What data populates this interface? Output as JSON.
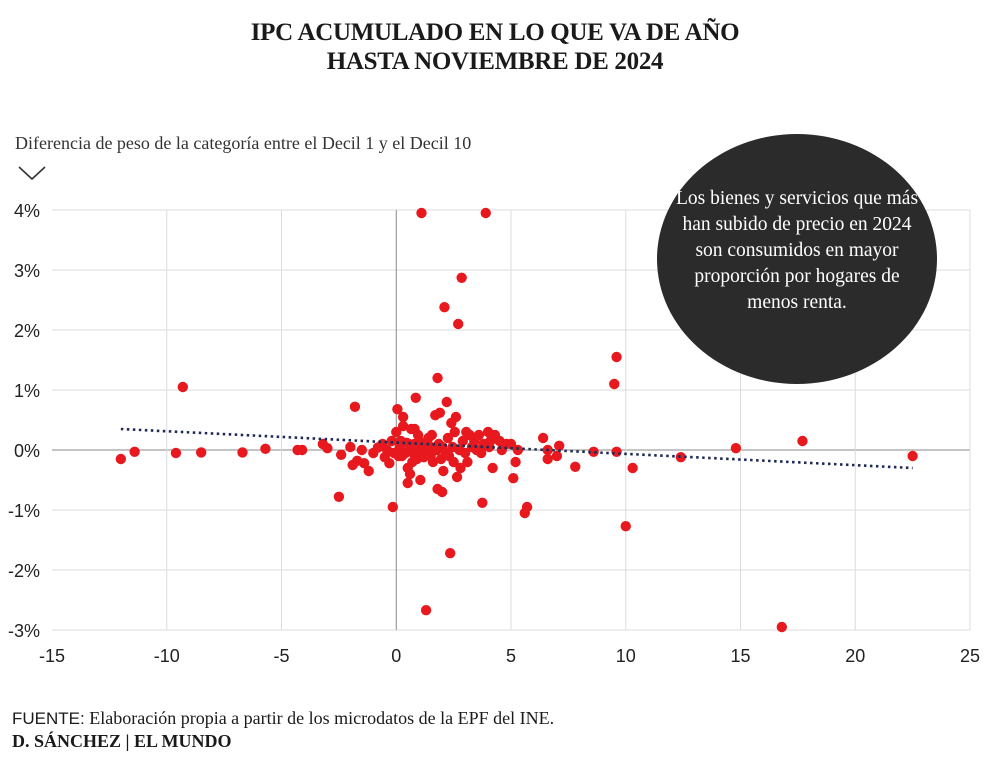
{
  "header": {
    "title_line1": "IPC ACUMULADO EN LO QUE VA DE AÑO",
    "title_line2": "HASTA NOVIEMBRE DE 2024",
    "subtitle": "Diferencia de peso de la categoría entre el Decil 1 y el Decil 10",
    "chevron_icon": "chevron-down-icon"
  },
  "annotation": {
    "text": "Los bienes y servicios que más han subido de precio en 2024 son consumidos en mayor proporción por hogares de menos renta.",
    "background": "#2b2b2b"
  },
  "footer": {
    "source_label": "FUENTE:",
    "source_text": " Elaboración propia a partir de los microdatos de la EPF del INE.",
    "credit": "D. SÁNCHEZ | EL MUNDO"
  },
  "colors": {
    "point": "#e8191e",
    "trend": "#1e2a55",
    "grid": "#dcdcdc",
    "zero_axis": "#8a8a8a"
  },
  "chart_data": {
    "type": "scatter",
    "xlim": [
      -15,
      25
    ],
    "ylim": [
      -3,
      4
    ],
    "x_ticks": [
      -15,
      -10,
      -5,
      0,
      5,
      10,
      15,
      20,
      25
    ],
    "x_tick_labels": [
      "-15",
      "-10",
      "-5",
      "0",
      "5",
      "10",
      "15",
      "20",
      "25"
    ],
    "y_ticks": [
      4,
      3,
      2,
      1,
      0,
      -1,
      -2,
      -3
    ],
    "y_tick_labels": [
      "4%",
      "3%",
      "2%",
      "1%",
      "0%",
      "-1%",
      "-2%",
      "-3%"
    ],
    "grid": true,
    "trendline": {
      "x": [
        -12,
        22.5
      ],
      "y": [
        0.35,
        -0.3
      ],
      "style": "dotted"
    },
    "points": [
      [
        -12.0,
        -0.15
      ],
      [
        -11.4,
        -0.03
      ],
      [
        -9.6,
        -0.05
      ],
      [
        -9.3,
        1.05
      ],
      [
        -8.5,
        -0.04
      ],
      [
        -6.7,
        -0.04
      ],
      [
        -5.7,
        0.02
      ],
      [
        -4.3,
        0.0
      ],
      [
        -4.1,
        0.0
      ],
      [
        -3.2,
        0.1
      ],
      [
        -3.0,
        0.03
      ],
      [
        -2.5,
        -0.78
      ],
      [
        -2.4,
        -0.08
      ],
      [
        -2.0,
        0.05
      ],
      [
        -1.9,
        -0.25
      ],
      [
        -1.8,
        0.72
      ],
      [
        -1.7,
        -0.18
      ],
      [
        -1.5,
        0.0
      ],
      [
        -1.4,
        -0.22
      ],
      [
        -1.2,
        -0.35
      ],
      [
        -1.0,
        -0.05
      ],
      [
        -0.8,
        0.04
      ],
      [
        -0.6,
        0.1
      ],
      [
        -0.5,
        -0.12
      ],
      [
        -0.4,
        0.0
      ],
      [
        -0.3,
        -0.22
      ],
      [
        -0.2,
        0.15
      ],
      [
        -0.1,
        -0.05
      ],
      [
        -0.15,
        -0.95
      ],
      [
        0.0,
        0.3
      ],
      [
        0.05,
        0.68
      ],
      [
        0.1,
        -0.1
      ],
      [
        0.15,
        0.05
      ],
      [
        0.2,
        0.15
      ],
      [
        0.25,
        -0.1
      ],
      [
        0.3,
        0.4
      ],
      [
        0.3,
        0.55
      ],
      [
        0.4,
        -0.05
      ],
      [
        0.45,
        0.12
      ],
      [
        0.5,
        -0.3
      ],
      [
        0.5,
        -0.55
      ],
      [
        0.55,
        0.1
      ],
      [
        0.6,
        0.0
      ],
      [
        0.6,
        -0.4
      ],
      [
        0.65,
        0.35
      ],
      [
        0.7,
        -0.2
      ],
      [
        0.75,
        -0.05
      ],
      [
        0.8,
        0.35
      ],
      [
        0.8,
        0.1
      ],
      [
        0.85,
        0.87
      ],
      [
        0.9,
        0.0
      ],
      [
        0.9,
        -0.15
      ],
      [
        0.95,
        0.25
      ],
      [
        1.0,
        -0.05
      ],
      [
        1.0,
        0.15
      ],
      [
        1.05,
        -0.5
      ],
      [
        1.1,
        3.95
      ],
      [
        1.1,
        0.05
      ],
      [
        1.2,
        -0.12
      ],
      [
        1.25,
        0.1
      ],
      [
        1.3,
        -2.67
      ],
      [
        1.3,
        0.0
      ],
      [
        1.4,
        0.2
      ],
      [
        1.5,
        -0.1
      ],
      [
        1.5,
        0.05
      ],
      [
        1.55,
        0.25
      ],
      [
        1.6,
        -0.2
      ],
      [
        1.7,
        0.58
      ],
      [
        1.75,
        0.0
      ],
      [
        1.8,
        1.2
      ],
      [
        1.8,
        -0.65
      ],
      [
        1.85,
        0.1
      ],
      [
        1.9,
        0.62
      ],
      [
        1.95,
        -0.15
      ],
      [
        2.0,
        -0.7
      ],
      [
        2.0,
        0.05
      ],
      [
        2.05,
        -0.35
      ],
      [
        2.1,
        2.38
      ],
      [
        2.15,
        -0.05
      ],
      [
        2.2,
        0.8
      ],
      [
        2.25,
        0.2
      ],
      [
        2.3,
        -0.1
      ],
      [
        2.35,
        -1.72
      ],
      [
        2.4,
        0.45
      ],
      [
        2.45,
        0.05
      ],
      [
        2.5,
        -0.2
      ],
      [
        2.55,
        0.3
      ],
      [
        2.6,
        0.55
      ],
      [
        2.65,
        -0.45
      ],
      [
        2.7,
        2.1
      ],
      [
        2.75,
        0.0
      ],
      [
        2.8,
        -0.3
      ],
      [
        2.85,
        2.87
      ],
      [
        2.9,
        0.15
      ],
      [
        3.0,
        -0.05
      ],
      [
        3.05,
        0.3
      ],
      [
        3.1,
        -0.2
      ],
      [
        3.2,
        0.25
      ],
      [
        3.3,
        0.05
      ],
      [
        3.4,
        0.15
      ],
      [
        3.5,
        0.0
      ],
      [
        3.6,
        0.25
      ],
      [
        3.7,
        -0.05
      ],
      [
        3.75,
        -0.88
      ],
      [
        3.8,
        0.1
      ],
      [
        3.9,
        3.95
      ],
      [
        4.0,
        0.3
      ],
      [
        4.05,
        0.05
      ],
      [
        4.1,
        0.15
      ],
      [
        4.2,
        -0.3
      ],
      [
        4.3,
        0.25
      ],
      [
        4.5,
        0.15
      ],
      [
        4.6,
        0.0
      ],
      [
        4.8,
        0.1
      ],
      [
        5.0,
        0.1
      ],
      [
        5.1,
        -0.47
      ],
      [
        5.2,
        -0.2
      ],
      [
        5.3,
        0.0
      ],
      [
        5.6,
        -1.05
      ],
      [
        5.7,
        -0.95
      ],
      [
        6.4,
        0.2
      ],
      [
        6.6,
        -0.15
      ],
      [
        6.6,
        0.0
      ],
      [
        7.0,
        -0.1
      ],
      [
        7.1,
        0.07
      ],
      [
        7.8,
        -0.28
      ],
      [
        8.6,
        -0.03
      ],
      [
        9.5,
        1.1
      ],
      [
        9.6,
        1.55
      ],
      [
        9.6,
        -0.03
      ],
      [
        10.0,
        -1.27
      ],
      [
        10.3,
        -0.3
      ],
      [
        12.4,
        -0.12
      ],
      [
        14.8,
        0.03
      ],
      [
        16.8,
        -2.95
      ],
      [
        17.7,
        0.15
      ],
      [
        22.5,
        -0.1
      ]
    ]
  }
}
